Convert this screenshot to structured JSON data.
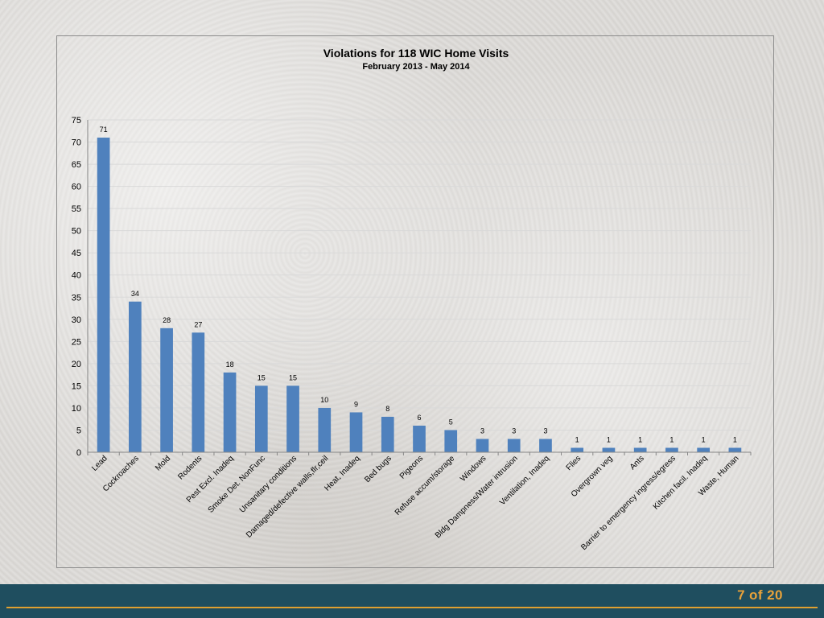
{
  "colors": {
    "bar": "#4f81bd",
    "gridline": "#d9d9d9",
    "footer_background": "#1f4e5f",
    "page_number": "#e8a23a"
  },
  "footer": {
    "current_page": "7",
    "of_label": "of",
    "total_pages": "20"
  },
  "chart_data": {
    "type": "bar",
    "title": "Violations for 118 WIC Home Visits",
    "subtitle": "February 2013 - May 2014",
    "xlabel": "",
    "ylabel": "",
    "ylim": [
      0,
      75
    ],
    "yticks": [
      0,
      5,
      10,
      15,
      20,
      25,
      30,
      35,
      40,
      45,
      50,
      55,
      60,
      65,
      70,
      75
    ],
    "grid": true,
    "legend": "none",
    "categories": [
      "Lead",
      "Cockroaches",
      "Mold",
      "Rodents",
      "Pest Excl. Inadeq",
      "Smoke Det. NonFunc",
      "Unsanitary conditions",
      "Damaged/defective walls,flr,ceil",
      "Heat, Inadeq",
      "Bed bugs",
      "Pigeons",
      "Refuse accum/storage",
      "Windows",
      "Bldg Dampness/Water intrusion",
      "Ventilation, Inadeq",
      "Flies",
      "Overgrown veg",
      "Ants",
      "Barrier to emergency ingress/egress",
      "Kitchen facil. Inadeq",
      "Waste, Human"
    ],
    "values": [
      71,
      34,
      28,
      27,
      18,
      15,
      15,
      10,
      9,
      8,
      6,
      5,
      3,
      3,
      3,
      1,
      1,
      1,
      1,
      1,
      1
    ]
  }
}
